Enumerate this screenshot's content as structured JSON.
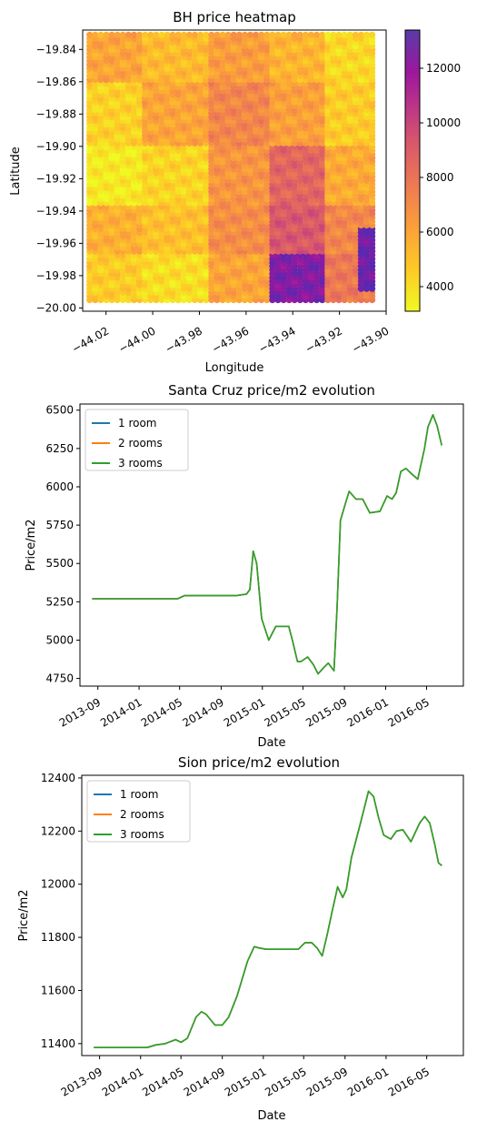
{
  "chart_data": [
    {
      "type": "heatmap",
      "title": "BH price heatmap",
      "xlabel": "Longitude",
      "ylabel": "Latitude",
      "xlim": [
        -44.03,
        -43.9
      ],
      "ylim": [
        -20.002,
        -19.828
      ],
      "x_ticks": [
        -44.02,
        -44.0,
        -43.98,
        -43.96,
        -43.94,
        -43.92,
        -43.9
      ],
      "x_tick_labels": [
        "−44.02",
        "−44.00",
        "−43.98",
        "−43.96",
        "−43.94",
        "−43.92",
        "−43.90"
      ],
      "y_ticks": [
        -19.84,
        -19.86,
        -19.88,
        -19.9,
        -19.92,
        -19.94,
        -19.96,
        -19.98,
        -20.0
      ],
      "y_tick_labels": [
        "−19.84",
        "−19.86",
        "−19.88",
        "−19.90",
        "−19.92",
        "−19.94",
        "−19.96",
        "−19.98",
        "−20.00"
      ],
      "colorbar": {
        "min": 3100,
        "max": 13400,
        "ticks": [
          4000,
          6000,
          8000,
          10000,
          12000
        ],
        "tick_labels": [
          "4000",
          "6000",
          "8000",
          "10000",
          "12000"
        ],
        "colormap": "plasma_r"
      },
      "grid_extent": {
        "lon": [
          -44.027,
          -43.906
        ],
        "lat": [
          -19.995,
          -19.831
        ]
      },
      "regions": [
        {
          "lon": [
            -44.027,
            -44.005
          ],
          "lat": [
            -19.86,
            -19.831
          ],
          "value": 6000
        },
        {
          "lon": [
            -44.005,
            -43.975
          ],
          "lat": [
            -19.86,
            -19.831
          ],
          "value": 5200
        },
        {
          "lon": [
            -43.975,
            -43.95
          ],
          "lat": [
            -19.86,
            -19.831
          ],
          "value": 6300
        },
        {
          "lon": [
            -43.95,
            -43.925
          ],
          "lat": [
            -19.86,
            -19.831
          ],
          "value": 5400
        },
        {
          "lon": [
            -43.925,
            -43.906
          ],
          "lat": [
            -19.86,
            -19.831
          ],
          "value": 4200
        },
        {
          "lon": [
            -44.027,
            -44.005
          ],
          "lat": [
            -19.9,
            -19.86
          ],
          "value": 4400
        },
        {
          "lon": [
            -44.005,
            -43.975
          ],
          "lat": [
            -19.9,
            -19.86
          ],
          "value": 6000
        },
        {
          "lon": [
            -43.975,
            -43.95
          ],
          "lat": [
            -19.9,
            -19.86
          ],
          "value": 7200
        },
        {
          "lon": [
            -43.95,
            -43.925
          ],
          "lat": [
            -19.9,
            -19.86
          ],
          "value": 6200
        },
        {
          "lon": [
            -43.925,
            -43.906
          ],
          "lat": [
            -19.9,
            -19.86
          ],
          "value": 4600
        },
        {
          "lon": [
            -44.027,
            -44.005
          ],
          "lat": [
            -19.935,
            -19.9
          ],
          "value": 3600
        },
        {
          "lon": [
            -44.005,
            -43.975
          ],
          "lat": [
            -19.935,
            -19.9
          ],
          "value": 4300
        },
        {
          "lon": [
            -43.975,
            -43.95
          ],
          "lat": [
            -19.935,
            -19.9
          ],
          "value": 6600
        },
        {
          "lon": [
            -43.95,
            -43.925
          ],
          "lat": [
            -19.935,
            -19.9
          ],
          "value": 8600
        },
        {
          "lon": [
            -43.925,
            -43.906
          ],
          "lat": [
            -19.935,
            -19.9
          ],
          "value": 5800
        },
        {
          "lon": [
            -44.027,
            -44.005
          ],
          "lat": [
            -19.965,
            -19.935
          ],
          "value": 5600
        },
        {
          "lon": [
            -44.005,
            -43.975
          ],
          "lat": [
            -19.965,
            -19.935
          ],
          "value": 5000
        },
        {
          "lon": [
            -43.975,
            -43.95
          ],
          "lat": [
            -19.965,
            -19.935
          ],
          "value": 6900
        },
        {
          "lon": [
            -43.95,
            -43.925
          ],
          "lat": [
            -19.965,
            -19.935
          ],
          "value": 9200
        },
        {
          "lon": [
            -43.925,
            -43.906
          ],
          "lat": [
            -19.965,
            -19.935
          ],
          "value": 7200
        },
        {
          "lon": [
            -44.027,
            -44.005
          ],
          "lat": [
            -19.995,
            -19.965
          ],
          "value": 4600
        },
        {
          "lon": [
            -44.005,
            -43.975
          ],
          "lat": [
            -19.995,
            -19.965
          ],
          "value": 4000
        },
        {
          "lon": [
            -43.975,
            -43.95
          ],
          "lat": [
            -19.995,
            -19.965
          ],
          "value": 6000
        },
        {
          "lon": [
            -43.95,
            -43.925
          ],
          "lat": [
            -19.995,
            -19.965
          ],
          "value": 12500
        },
        {
          "lon": [
            -43.925,
            -43.906
          ],
          "lat": [
            -19.995,
            -19.965
          ],
          "value": 7800
        },
        {
          "lon": [
            -43.912,
            -43.906
          ],
          "lat": [
            -19.99,
            -19.95
          ],
          "value": 13000
        }
      ]
    },
    {
      "type": "line",
      "title": "Santa Cruz price/m2 evolution",
      "xlabel": "Date",
      "ylabel": "Price/m2",
      "xlim": [
        "2013-07-10",
        "2016-08-18"
      ],
      "ylim": [
        4700,
        6540
      ],
      "x_ticks": [
        "2013-09-01",
        "2014-01-01",
        "2014-05-01",
        "2014-09-01",
        "2015-01-01",
        "2015-05-01",
        "2015-09-01",
        "2016-01-01",
        "2016-05-01"
      ],
      "x_tick_labels": [
        "2013-09",
        "2014-01",
        "2014-05",
        "2014-09",
        "2015-01",
        "2015-05",
        "2015-09",
        "2016-01",
        "2016-05"
      ],
      "y_ticks": [
        4750,
        5000,
        5250,
        5500,
        5750,
        6000,
        6250,
        6500
      ],
      "y_tick_labels": [
        "4750",
        "5000",
        "5250",
        "5500",
        "5750",
        "6000",
        "6250",
        "6500"
      ],
      "legend": "top-left",
      "x": [
        "2013-08-15",
        "2014-04-25",
        "2014-05-15",
        "2014-10-15",
        "2014-11-15",
        "2014-11-25",
        "2014-12-05",
        "2014-12-15",
        "2014-12-30",
        "2015-01-20",
        "2015-02-10",
        "2015-03-01",
        "2015-03-20",
        "2015-04-01",
        "2015-04-15",
        "2015-04-25",
        "2015-05-15",
        "2015-06-01",
        "2015-06-15",
        "2015-07-01",
        "2015-07-15",
        "2015-08-01",
        "2015-08-10",
        "2015-08-20",
        "2015-09-05",
        "2015-09-15",
        "2015-10-05",
        "2015-10-25",
        "2015-11-15",
        "2015-12-15",
        "2016-01-05",
        "2016-01-20",
        "2016-02-01",
        "2016-02-15",
        "2016-03-01",
        "2016-03-20",
        "2016-04-05",
        "2016-04-25",
        "2016-05-05",
        "2016-05-20",
        "2016-06-01",
        "2016-06-15"
      ],
      "series": [
        {
          "name": "1 room",
          "color": "#1f77b4",
          "values": [
            5270,
            5270,
            5290,
            5290,
            5300,
            5330,
            5580,
            5500,
            5140,
            5000,
            5090,
            5090,
            5090,
            4990,
            4860,
            4860,
            4890,
            4840,
            4780,
            4820,
            4850,
            4800,
            5200,
            5780,
            5900,
            5970,
            5920,
            5920,
            5830,
            5840,
            5940,
            5920,
            5960,
            6100,
            6120,
            6080,
            6050,
            6250,
            6390,
            6470,
            6400,
            6270
          ]
        },
        {
          "name": "2 rooms",
          "color": "#ff7f0e",
          "values": [
            5270,
            5270,
            5290,
            5290,
            5300,
            5330,
            5580,
            5500,
            5140,
            5000,
            5090,
            5090,
            5090,
            4990,
            4860,
            4860,
            4890,
            4840,
            4780,
            4820,
            4850,
            4800,
            5200,
            5780,
            5900,
            5970,
            5920,
            5920,
            5830,
            5840,
            5940,
            5920,
            5960,
            6100,
            6120,
            6080,
            6050,
            6250,
            6390,
            6470,
            6400,
            6270
          ]
        },
        {
          "name": "3 rooms",
          "color": "#2ca02c",
          "values": [
            5270,
            5270,
            5290,
            5290,
            5300,
            5330,
            5580,
            5500,
            5140,
            5000,
            5090,
            5090,
            5090,
            4990,
            4860,
            4860,
            4890,
            4840,
            4780,
            4820,
            4850,
            4800,
            5200,
            5780,
            5900,
            5970,
            5920,
            5920,
            5830,
            5840,
            5940,
            5920,
            5960,
            6100,
            6120,
            6080,
            6050,
            6250,
            6390,
            6470,
            6400,
            6270
          ]
        }
      ]
    },
    {
      "type": "line",
      "title": "Sion price/m2 evolution",
      "xlabel": "Date",
      "ylabel": "Price/m2",
      "xlim": [
        "2013-07-10",
        "2016-08-18"
      ],
      "ylim": [
        11355,
        12410
      ],
      "x_ticks": [
        "2013-09-01",
        "2014-01-01",
        "2014-05-01",
        "2014-09-01",
        "2015-01-01",
        "2015-05-01",
        "2015-09-01",
        "2016-01-01",
        "2016-05-01"
      ],
      "x_tick_labels": [
        "2013-09",
        "2014-01",
        "2014-05",
        "2014-09",
        "2015-01",
        "2015-05",
        "2015-09",
        "2016-01",
        "2016-05"
      ],
      "y_ticks": [
        11400,
        11600,
        11800,
        12000,
        12200,
        12400
      ],
      "y_tick_labels": [
        "11400",
        "11600",
        "11800",
        "12000",
        "12200",
        "12400"
      ],
      "legend": "top-left",
      "x": [
        "2013-08-15",
        "2014-01-20",
        "2014-02-15",
        "2014-03-15",
        "2014-04-15",
        "2014-05-01",
        "2014-05-20",
        "2014-06-15",
        "2014-07-01",
        "2014-07-15",
        "2014-08-10",
        "2014-09-01",
        "2014-09-20",
        "2014-10-15",
        "2014-11-15",
        "2014-12-05",
        "2014-12-20",
        "2015-01-10",
        "2015-02-10",
        "2015-03-15",
        "2015-04-15",
        "2015-05-05",
        "2015-05-25",
        "2015-06-10",
        "2015-06-25",
        "2015-07-10",
        "2015-07-25",
        "2015-08-10",
        "2015-08-25",
        "2015-09-05",
        "2015-09-20",
        "2015-10-15",
        "2015-11-10",
        "2015-11-25",
        "2015-12-10",
        "2015-12-25",
        "2016-01-15",
        "2016-02-01",
        "2016-02-20",
        "2016-03-15",
        "2016-04-10",
        "2016-04-25",
        "2016-05-10",
        "2016-05-25",
        "2016-06-05",
        "2016-06-15"
      ],
      "series": [
        {
          "name": "1 room",
          "color": "#1f77b4",
          "values": [
            11385,
            11385,
            11395,
            11400,
            11415,
            11405,
            11420,
            11500,
            11520,
            11510,
            11470,
            11470,
            11500,
            11580,
            11710,
            11765,
            11760,
            11755,
            11755,
            11755,
            11755,
            11780,
            11780,
            11760,
            11730,
            11810,
            11900,
            11990,
            11950,
            11980,
            12100,
            12220,
            12350,
            12330,
            12250,
            12185,
            12170,
            12200,
            12205,
            12160,
            12230,
            12255,
            12230,
            12150,
            12080,
            12070
          ]
        },
        {
          "name": "2 rooms",
          "color": "#ff7f0e",
          "values": [
            11385,
            11385,
            11395,
            11400,
            11415,
            11405,
            11420,
            11500,
            11520,
            11510,
            11470,
            11470,
            11500,
            11580,
            11710,
            11765,
            11760,
            11755,
            11755,
            11755,
            11755,
            11780,
            11780,
            11760,
            11730,
            11810,
            11900,
            11990,
            11950,
            11980,
            12100,
            12220,
            12350,
            12330,
            12250,
            12185,
            12170,
            12200,
            12205,
            12160,
            12230,
            12255,
            12230,
            12150,
            12080,
            12070
          ]
        },
        {
          "name": "3 rooms",
          "color": "#2ca02c",
          "values": [
            11385,
            11385,
            11395,
            11400,
            11415,
            11405,
            11420,
            11500,
            11520,
            11510,
            11470,
            11470,
            11500,
            11580,
            11710,
            11765,
            11760,
            11755,
            11755,
            11755,
            11755,
            11780,
            11780,
            11760,
            11730,
            11810,
            11900,
            11990,
            11950,
            11980,
            12100,
            12220,
            12350,
            12330,
            12250,
            12185,
            12170,
            12200,
            12205,
            12160,
            12230,
            12255,
            12230,
            12150,
            12080,
            12070
          ]
        }
      ]
    }
  ]
}
